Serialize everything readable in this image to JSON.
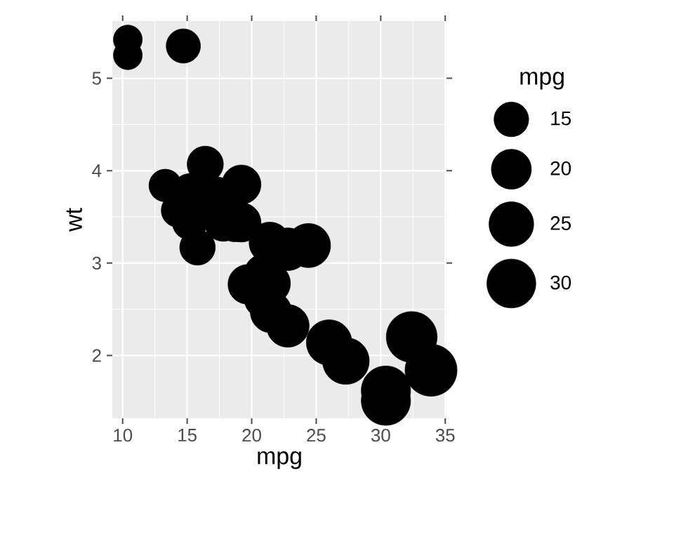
{
  "chart_data": {
    "type": "bubble",
    "xlabel": "mpg",
    "ylabel": "wt",
    "legend_title": "mpg",
    "grid": true,
    "color": "#000000",
    "x": [
      21.0,
      21.0,
      22.8,
      21.4,
      18.7,
      18.1,
      14.3,
      24.4,
      22.8,
      19.2,
      17.8,
      16.4,
      17.3,
      15.2,
      10.4,
      10.4,
      14.7,
      32.4,
      30.4,
      33.9,
      21.5,
      15.5,
      15.2,
      13.3,
      19.2,
      27.3,
      26.0,
      30.4,
      15.8,
      19.7,
      21.4
    ],
    "values": [
      2.62,
      2.88,
      2.32,
      3.22,
      3.44,
      3.46,
      3.57,
      3.19,
      3.15,
      3.44,
      3.44,
      4.07,
      3.73,
      3.78,
      5.25,
      5.42,
      5.35,
      2.2,
      1.62,
      1.84,
      2.47,
      3.52,
      3.44,
      3.84,
      3.85,
      1.94,
      2.14,
      1.51,
      3.17,
      2.77,
      2.78
    ],
    "sizes": [
      21.0,
      21.0,
      22.8,
      21.4,
      18.7,
      18.1,
      14.3,
      24.4,
      22.8,
      19.2,
      17.8,
      16.4,
      17.3,
      15.2,
      10.4,
      10.4,
      14.7,
      32.4,
      30.4,
      33.9,
      21.5,
      15.5,
      15.2,
      13.3,
      19.2,
      27.3,
      26.0,
      30.4,
      15.8,
      19.7,
      21.4
    ],
    "size_legend": [
      15,
      20,
      25,
      30
    ],
    "xlim": [
      9.2,
      35.1
    ],
    "ylim": [
      1.32,
      5.62
    ],
    "xticks": [
      10,
      15,
      20,
      25,
      30,
      35
    ],
    "yticks": [
      2,
      3,
      4,
      5
    ]
  }
}
